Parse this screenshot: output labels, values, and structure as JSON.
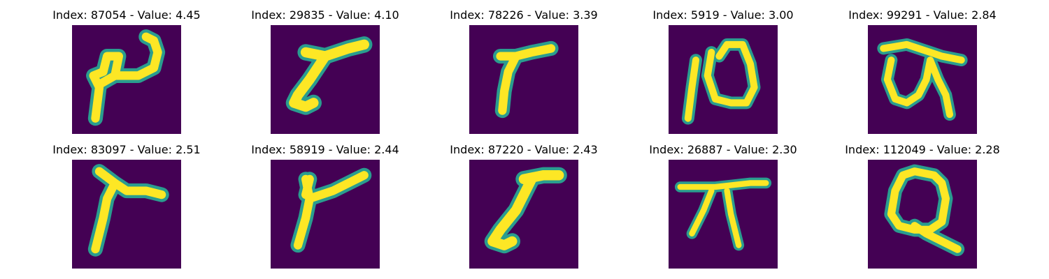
{
  "colors": {
    "background": "#440154",
    "stroke_core": "#fde725",
    "stroke_edge": "#2a9d8f"
  },
  "panels": [
    {
      "title": "Index: 87054 - Value: 4.45"
    },
    {
      "title": "Index: 29835 - Value: 4.10"
    },
    {
      "title": "Index: 78226 - Value: 3.39"
    },
    {
      "title": "Index: 5919 - Value: 3.00"
    },
    {
      "title": "Index: 99291 - Value: 2.84"
    },
    {
      "title": "Index: 83097 - Value: 2.51"
    },
    {
      "title": "Index: 58919 - Value: 2.44"
    },
    {
      "title": "Index: 87220 - Value: 2.43"
    },
    {
      "title": "Index: 26887 - Value: 2.30"
    },
    {
      "title": "Index: 112049 - Value: 2.28"
    }
  ]
}
